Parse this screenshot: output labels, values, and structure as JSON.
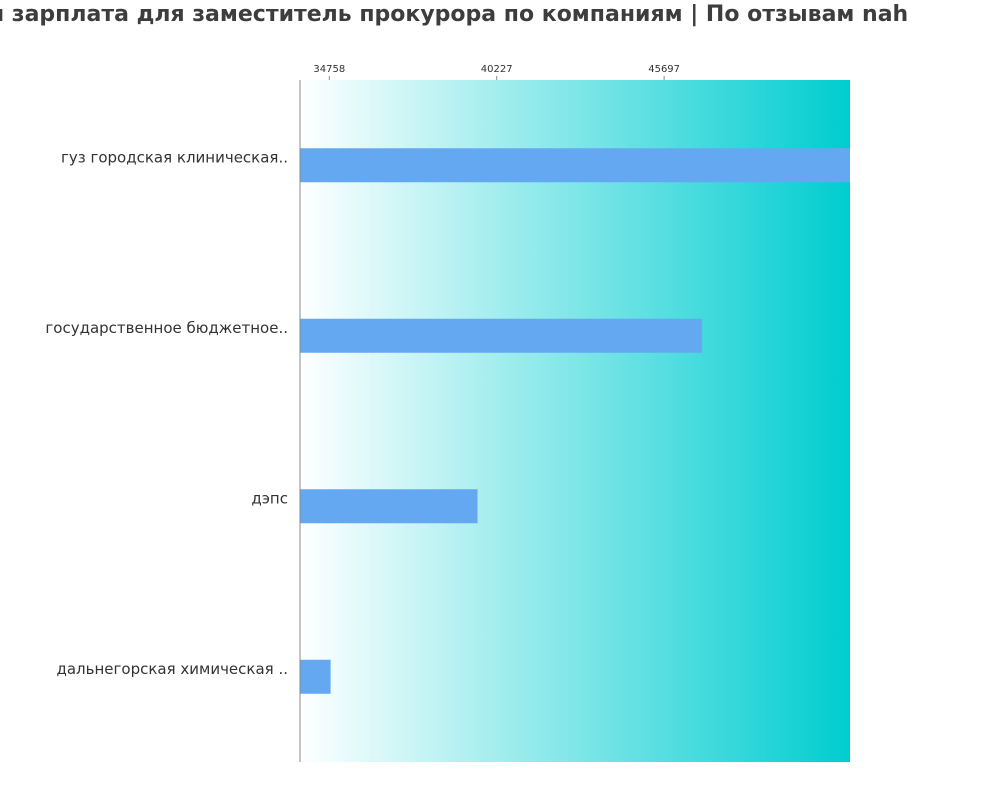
{
  "page": {
    "title": "я зарплата для заместитель прокурора по компаниям  | По отзывам nah"
  },
  "colors": {
    "bar": "#64a8f2",
    "gradient_start": "#ffffff",
    "gradient_end": "#00cdd0",
    "axis": "#888888",
    "tick_text": "#333333",
    "category_text": "#333333"
  },
  "chart_data": {
    "type": "bar",
    "orientation": "horizontal",
    "title": "я зарплата для заместитель прокурора по компаниям  | По отзывам nah",
    "categories": [
      "гуз городская клиническая..",
      "государственное бюджетное..",
      "дэпс",
      "дальнегорская химическая .."
    ],
    "values": [
      51770,
      46940,
      39600,
      34800
    ],
    "xlim": [
      33800,
      51770
    ],
    "xticks": [
      34758,
      40227,
      45697
    ],
    "xtick_labels": [
      "34758",
      "40227",
      "45697"
    ],
    "tick_position": "top",
    "grid": false,
    "legend": "none"
  }
}
